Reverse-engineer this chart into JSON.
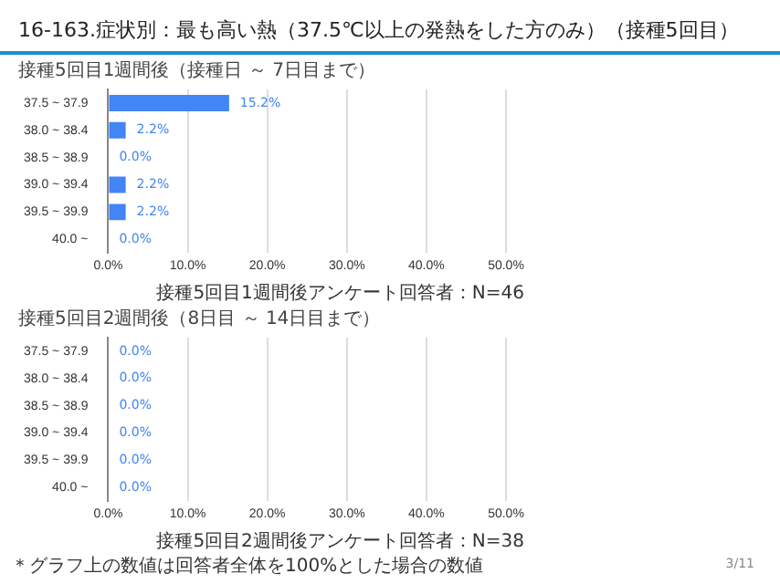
{
  "chart_data": [
    {
      "type": "bar",
      "orientation": "horizontal",
      "title": "16-163.症状別：最も高い熱（37.5℃以上の発熱をした方のみ）（接種5回目）",
      "subtitle": "接種5回目1週間後（接種日 ～ 7日目まで）",
      "categories": [
        "37.5 ~ 37.9",
        "38.0 ~ 38.4",
        "38.5 ~ 38.9",
        "39.0 ~ 39.4",
        "39.5 ~ 39.9",
        "40.0 ~"
      ],
      "values": [
        15.2,
        2.2,
        0,
        2.2,
        2.2,
        0
      ],
      "color": "#4285f4",
      "value_labels": [
        "15.2%",
        "2.2%",
        "0.0%",
        "2.2%",
        "2.2%",
        "0.0%"
      ],
      "xlim": [
        0,
        50
      ],
      "xticks": [
        {
          "value": 0,
          "label": "0.0%"
        },
        {
          "value": 10,
          "label": "10.0%"
        },
        {
          "value": 20,
          "label": "20.0%"
        },
        {
          "value": 30,
          "label": "30.0%"
        },
        {
          "value": 40,
          "label": "40.0%"
        },
        {
          "value": 50,
          "label": "50.0%"
        }
      ],
      "grid": "x",
      "annotations": [
        "接種5回目1週間後アンケート回答者：N=46"
      ]
    },
    {
      "type": "bar",
      "orientation": "horizontal",
      "title": "接種5回目2週間後（8日目 ～ 14日目まで）",
      "categories": [
        "37.5 ~ 37.9",
        "38.0 ~ 38.4",
        "38.5 ~ 38.9",
        "39.0 ~ 39.4",
        "39.5 ~ 39.9",
        "40.0 ~"
      ],
      "values": [
        0,
        0,
        0,
        0,
        0,
        0
      ],
      "color": "#4285f4",
      "value_labels": [
        "0.0%",
        "0.0%",
        "0.0%",
        "0.0%",
        "0.0%",
        "0.0%"
      ],
      "xlim": [
        0,
        50
      ],
      "xticks": [
        {
          "value": 0,
          "label": "0.0%"
        },
        {
          "value": 10,
          "label": "10.0%"
        },
        {
          "value": 20,
          "label": "20.0%"
        },
        {
          "value": 30,
          "label": "30.0%"
        },
        {
          "value": 40,
          "label": "40.0%"
        },
        {
          "value": 50,
          "label": "50.0%"
        }
      ],
      "grid": "x",
      "annotations": [
        "接種5回目2週間後アンケート回答者：N=38",
        "＊グラフ上の数値は回答者全体を100%とした場合の数値",
        "3/11"
      ]
    }
  ]
}
